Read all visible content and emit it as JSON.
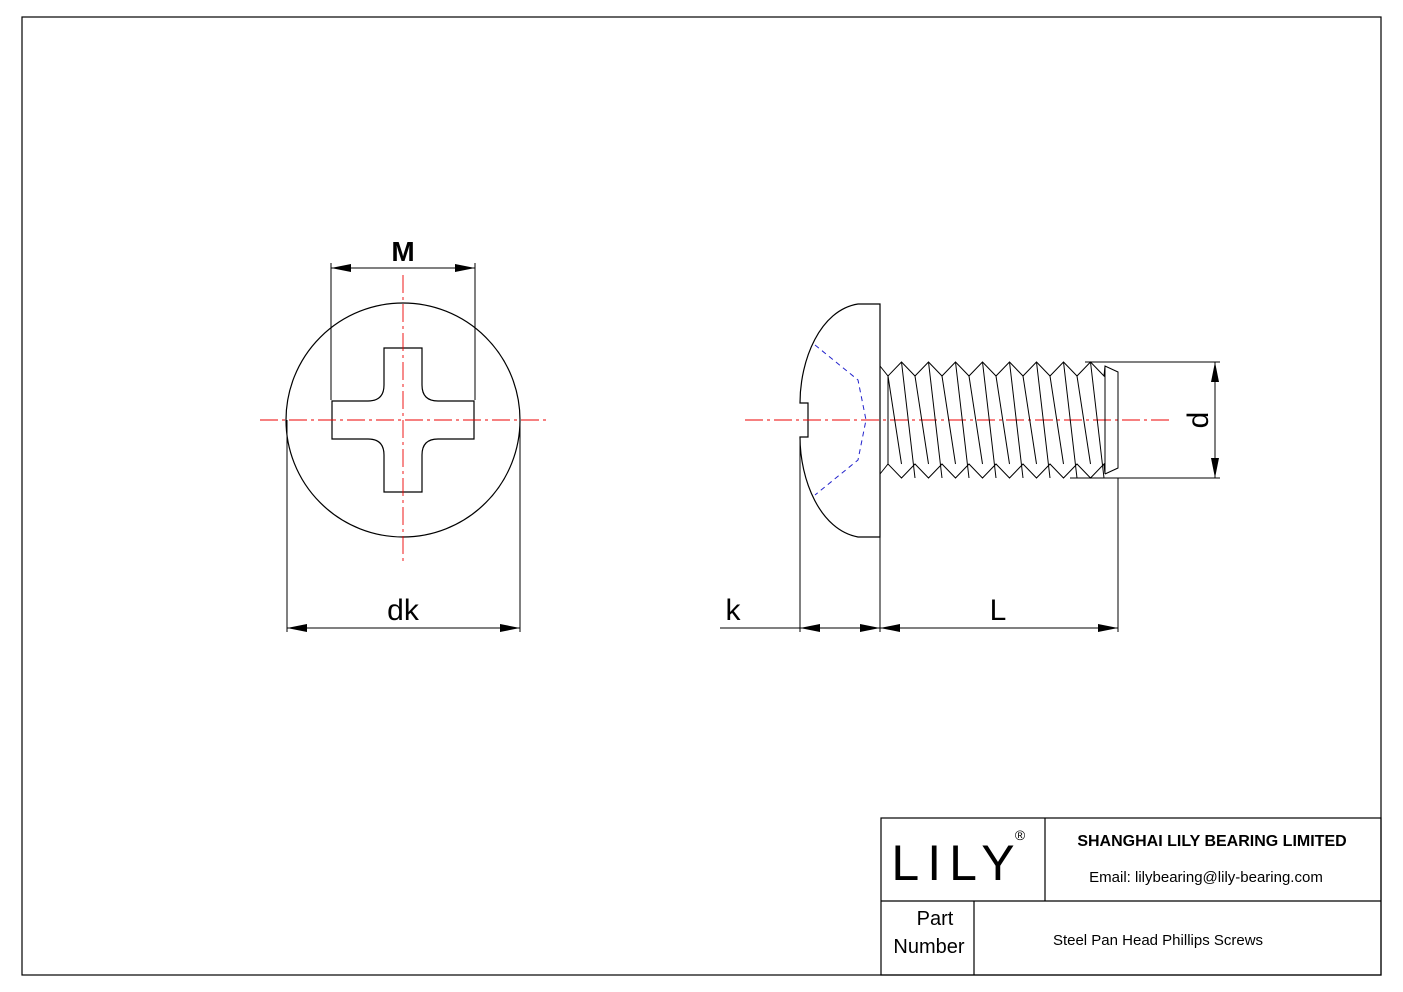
{
  "drawing": {
    "dimensions": {
      "M": "M",
      "dk": "dk",
      "k": "k",
      "L": "L",
      "d": "d"
    }
  },
  "title_block": {
    "logo": "LILY",
    "registered": "®",
    "company": "SHANGHAI LILY BEARING LIMITED",
    "email": "Email: lilybearing@lily-bearing.com",
    "part_label": [
      "Part",
      "Number"
    ],
    "part_name": "Steel Pan Head Phillips Screws"
  }
}
